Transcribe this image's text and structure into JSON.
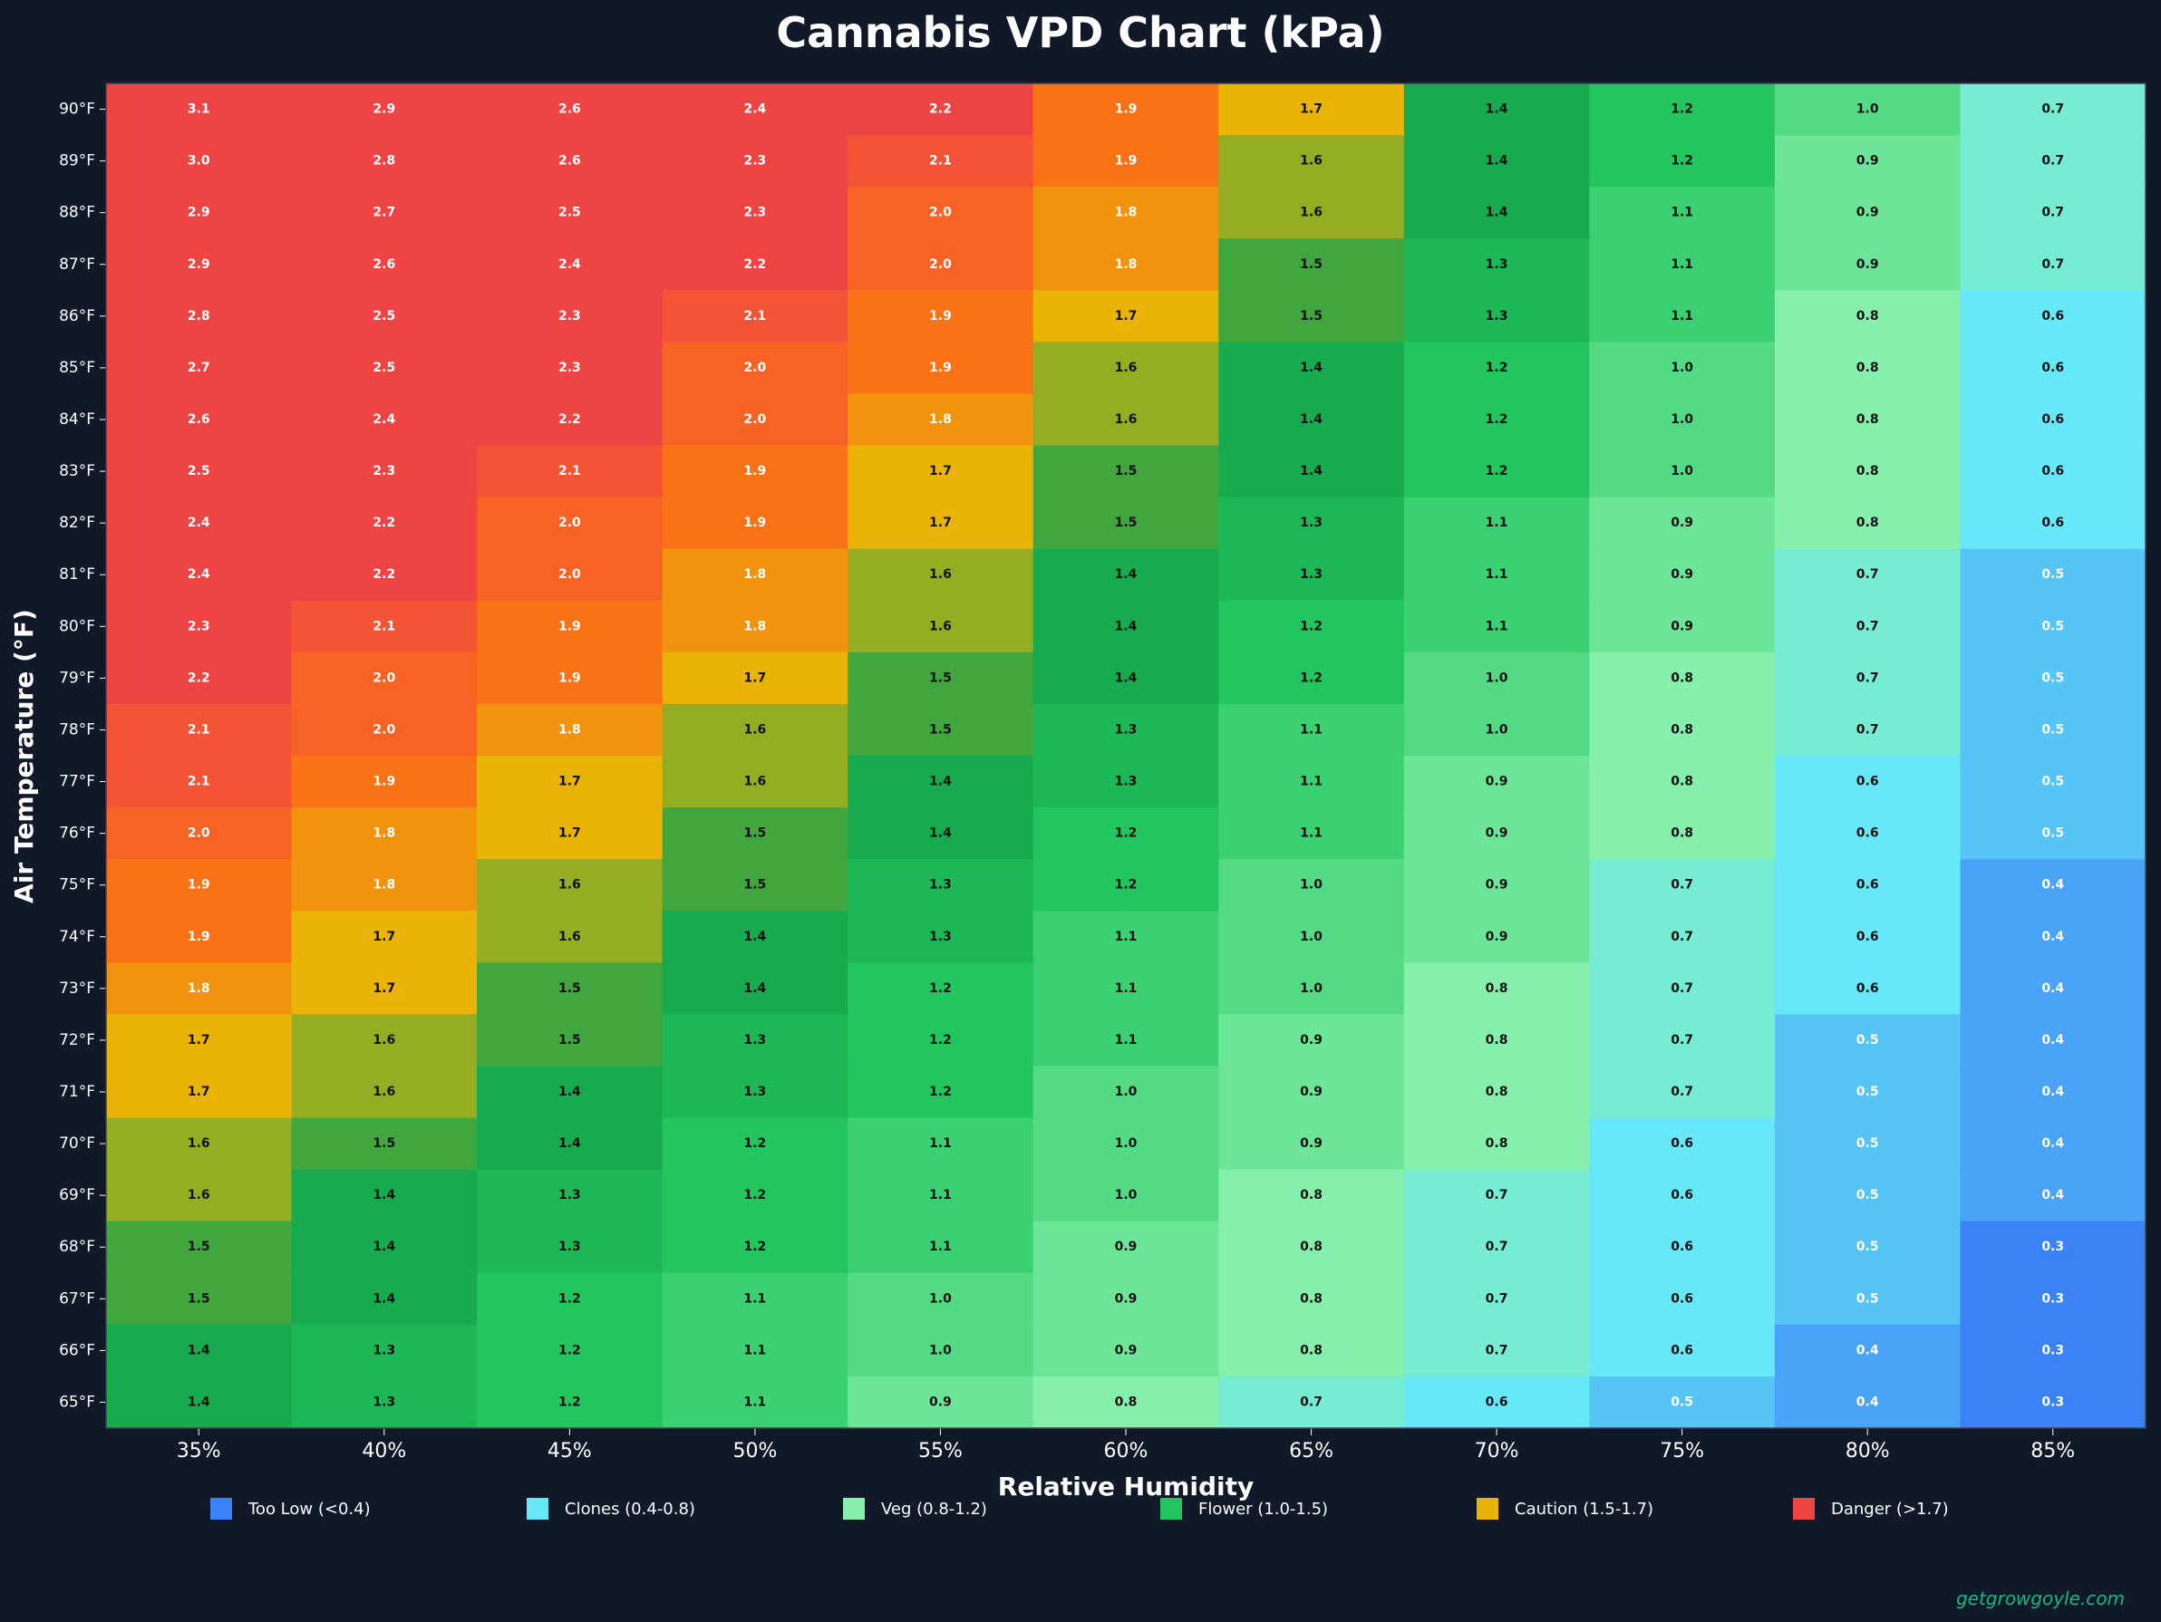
{
  "chart_data": {
    "type": "heatmap",
    "title": "Cannabis VPD Chart (kPa)",
    "xlabel": "Relative Humidity",
    "ylabel": "Air Temperature (°F)",
    "x_categories": [
      "35%",
      "40%",
      "45%",
      "50%",
      "55%",
      "60%",
      "65%",
      "70%",
      "75%",
      "80%",
      "85%"
    ],
    "y_categories": [
      "90°F",
      "89°F",
      "88°F",
      "87°F",
      "86°F",
      "85°F",
      "84°F",
      "83°F",
      "82°F",
      "81°F",
      "80°F",
      "79°F",
      "78°F",
      "77°F",
      "76°F",
      "75°F",
      "74°F",
      "73°F",
      "72°F",
      "71°F",
      "70°F",
      "69°F",
      "68°F",
      "67°F",
      "66°F",
      "65°F"
    ],
    "values": [
      [
        "3.1",
        "2.9",
        "2.6",
        "2.4",
        "2.2",
        "1.9",
        "1.7",
        "1.4",
        "1.2",
        "1.0",
        "0.7"
      ],
      [
        "3.0",
        "2.8",
        "2.6",
        "2.3",
        "2.1",
        "1.9",
        "1.6",
        "1.4",
        "1.2",
        "0.9",
        "0.7"
      ],
      [
        "2.9",
        "2.7",
        "2.5",
        "2.3",
        "2.0",
        "1.8",
        "1.6",
        "1.4",
        "1.1",
        "0.9",
        "0.7"
      ],
      [
        "2.9",
        "2.6",
        "2.4",
        "2.2",
        "2.0",
        "1.8",
        "1.5",
        "1.3",
        "1.1",
        "0.9",
        "0.7"
      ],
      [
        "2.8",
        "2.5",
        "2.3",
        "2.1",
        "1.9",
        "1.7",
        "1.5",
        "1.3",
        "1.1",
        "0.8",
        "0.6"
      ],
      [
        "2.7",
        "2.5",
        "2.3",
        "2.0",
        "1.9",
        "1.6",
        "1.4",
        "1.2",
        "1.0",
        "0.8",
        "0.6"
      ],
      [
        "2.6",
        "2.4",
        "2.2",
        "2.0",
        "1.8",
        "1.6",
        "1.4",
        "1.2",
        "1.0",
        "0.8",
        "0.6"
      ],
      [
        "2.5",
        "2.3",
        "2.1",
        "1.9",
        "1.7",
        "1.5",
        "1.4",
        "1.2",
        "1.0",
        "0.8",
        "0.6"
      ],
      [
        "2.4",
        "2.2",
        "2.0",
        "1.9",
        "1.7",
        "1.5",
        "1.3",
        "1.1",
        "0.9",
        "0.8",
        "0.6"
      ],
      [
        "2.4",
        "2.2",
        "2.0",
        "1.8",
        "1.6",
        "1.4",
        "1.3",
        "1.1",
        "0.9",
        "0.7",
        "0.5"
      ],
      [
        "2.3",
        "2.1",
        "1.9",
        "1.8",
        "1.6",
        "1.4",
        "1.2",
        "1.1",
        "0.9",
        "0.7",
        "0.5"
      ],
      [
        "2.2",
        "2.0",
        "1.9",
        "1.7",
        "1.5",
        "1.4",
        "1.2",
        "1.0",
        "0.8",
        "0.7",
        "0.5"
      ],
      [
        "2.1",
        "2.0",
        "1.8",
        "1.6",
        "1.5",
        "1.3",
        "1.1",
        "1.0",
        "0.8",
        "0.7",
        "0.5"
      ],
      [
        "2.1",
        "1.9",
        "1.7",
        "1.6",
        "1.4",
        "1.3",
        "1.1",
        "0.9",
        "0.8",
        "0.6",
        "0.5"
      ],
      [
        "2.0",
        "1.8",
        "1.7",
        "1.5",
        "1.4",
        "1.2",
        "1.1",
        "0.9",
        "0.8",
        "0.6",
        "0.5"
      ],
      [
        "1.9",
        "1.8",
        "1.6",
        "1.5",
        "1.3",
        "1.2",
        "1.0",
        "0.9",
        "0.7",
        "0.6",
        "0.4"
      ],
      [
        "1.9",
        "1.7",
        "1.6",
        "1.4",
        "1.3",
        "1.1",
        "1.0",
        "0.9",
        "0.7",
        "0.6",
        "0.4"
      ],
      [
        "1.8",
        "1.7",
        "1.5",
        "1.4",
        "1.2",
        "1.1",
        "1.0",
        "0.8",
        "0.7",
        "0.6",
        "0.4"
      ],
      [
        "1.7",
        "1.6",
        "1.5",
        "1.3",
        "1.2",
        "1.1",
        "0.9",
        "0.8",
        "0.7",
        "0.5",
        "0.4"
      ],
      [
        "1.7",
        "1.6",
        "1.4",
        "1.3",
        "1.2",
        "1.0",
        "0.9",
        "0.8",
        "0.7",
        "0.5",
        "0.4"
      ],
      [
        "1.6",
        "1.5",
        "1.4",
        "1.2",
        "1.1",
        "1.0",
        "0.9",
        "0.8",
        "0.6",
        "0.5",
        "0.4"
      ],
      [
        "1.6",
        "1.4",
        "1.3",
        "1.2",
        "1.1",
        "1.0",
        "0.8",
        "0.7",
        "0.6",
        "0.5",
        "0.4"
      ],
      [
        "1.5",
        "1.4",
        "1.3",
        "1.2",
        "1.1",
        "0.9",
        "0.8",
        "0.7",
        "0.6",
        "0.5",
        "0.3"
      ],
      [
        "1.5",
        "1.4",
        "1.2",
        "1.1",
        "1.0",
        "0.9",
        "0.8",
        "0.7",
        "0.6",
        "0.5",
        "0.3"
      ],
      [
        "1.4",
        "1.3",
        "1.2",
        "1.1",
        "1.0",
        "0.9",
        "0.8",
        "0.7",
        "0.6",
        "0.4",
        "0.3"
      ],
      [
        "1.4",
        "1.3",
        "1.2",
        "1.1",
        "0.9",
        "0.8",
        "0.7",
        "0.6",
        "0.5",
        "0.4",
        "0.3"
      ]
    ],
    "color_scale": [
      {
        "v": 0.3,
        "color": "#3b82f6"
      },
      {
        "v": 0.5,
        "color": "#56c4f5"
      },
      {
        "v": 0.6,
        "color": "#67e8f9"
      },
      {
        "v": 0.8,
        "color": "#86efac"
      },
      {
        "v": 1.2,
        "color": "#22c55e"
      },
      {
        "v": 1.45,
        "color": "#16a34a"
      },
      {
        "v": 1.7,
        "color": "#eab308"
      },
      {
        "v": 1.9,
        "color": "#f97316"
      },
      {
        "v": 2.2,
        "color": "#ef4444"
      }
    ],
    "legend_position": "bottom",
    "legend": [
      {
        "label": "Too Low (<0.4)",
        "color": "#3b82f6"
      },
      {
        "label": "Clones (0.4-0.8)",
        "color": "#67e8f9"
      },
      {
        "label": "Veg (0.8-1.2)",
        "color": "#86efac"
      },
      {
        "label": "Flower (1.0-1.5)",
        "color": "#22c55e"
      },
      {
        "label": "Caution (1.5-1.7)",
        "color": "#eab308"
      },
      {
        "label": "Danger (>1.7)",
        "color": "#ef4444"
      }
    ]
  },
  "theme": {
    "background": "#111827",
    "text_color": "#ffffff",
    "watermark_color": "#10b981"
  },
  "watermark": "getgrowgoyle.com"
}
